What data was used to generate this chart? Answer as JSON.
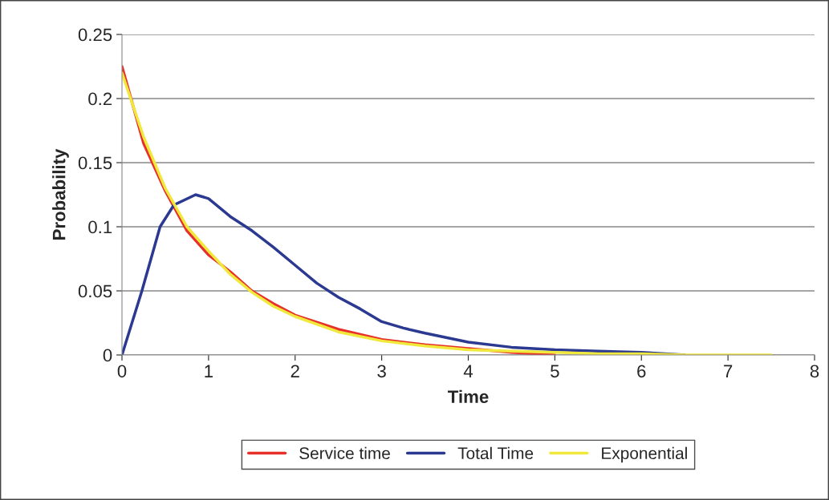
{
  "chart_data": {
    "type": "line",
    "xlabel": "Time",
    "ylabel": "Probability",
    "xlim": [
      0,
      8
    ],
    "xticks": [
      0,
      1,
      2,
      3,
      4,
      5,
      6,
      7,
      8
    ],
    "ylim": [
      0,
      0.25
    ],
    "yticks": [
      0,
      0.05,
      0.1,
      0.15,
      0.2,
      0.25
    ],
    "grid": "y",
    "legend": "bottom",
    "marker": "none",
    "line_style": "solid",
    "series": [
      {
        "name": "Service time",
        "color": "#e8302a",
        "x": [
          0,
          0.25,
          0.5,
          0.75,
          1,
          1.25,
          1.5,
          1.75,
          2,
          2.5,
          3,
          3.5,
          4,
          4.5,
          5
        ],
        "values": [
          0.225,
          0.165,
          0.128,
          0.097,
          0.078,
          0.065,
          0.05,
          0.04,
          0.031,
          0.02,
          0.012,
          0.008,
          0.005,
          0.002,
          0
        ]
      },
      {
        "name": "Total Time",
        "color": "#2b3990",
        "x": [
          0,
          0.23,
          0.44,
          0.6,
          0.85,
          1,
          1.25,
          1.5,
          1.75,
          2,
          2.25,
          2.5,
          2.75,
          3,
          3.25,
          3.5,
          4,
          4.5,
          5,
          5.5,
          6,
          6.5
        ],
        "values": [
          0,
          0.05,
          0.1,
          0.117,
          0.125,
          0.122,
          0.108,
          0.097,
          0.084,
          0.07,
          0.056,
          0.045,
          0.036,
          0.026,
          0.021,
          0.017,
          0.01,
          0.006,
          0.004,
          0.003,
          0.002,
          0
        ]
      },
      {
        "name": "Exponential",
        "color": "#f0e83a",
        "x": [
          0,
          0.25,
          0.5,
          0.75,
          1,
          1.25,
          1.5,
          1.75,
          2,
          2.5,
          3,
          3.5,
          4,
          4.5,
          5,
          5.5,
          6,
          6.5,
          7,
          7.5
        ],
        "values": [
          0.22,
          0.17,
          0.13,
          0.1,
          0.081,
          0.063,
          0.049,
          0.038,
          0.03,
          0.018,
          0.011,
          0.007,
          0.004,
          0.003,
          0.002,
          0.001,
          0.001,
          0,
          0,
          0
        ]
      }
    ]
  }
}
